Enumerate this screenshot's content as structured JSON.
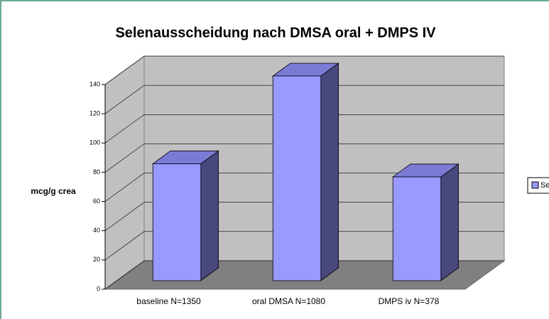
{
  "chart_data": {
    "type": "bar3d",
    "title": "Selenausscheidung nach DMSA oral + DMPS IV",
    "y_label": "mcg/g crea",
    "categories": [
      "baseline N=1350",
      "oral DMSA  N=1080",
      "DMPS iv  N=378"
    ],
    "series": [
      {
        "name": "Se",
        "color": "#9999ff",
        "values": [
          80,
          140,
          71
        ]
      }
    ],
    "ylim": [
      0,
      140
    ],
    "yticks": [
      0,
      20,
      40,
      60,
      80,
      100,
      120,
      140
    ],
    "grid": true,
    "legend": "right"
  }
}
